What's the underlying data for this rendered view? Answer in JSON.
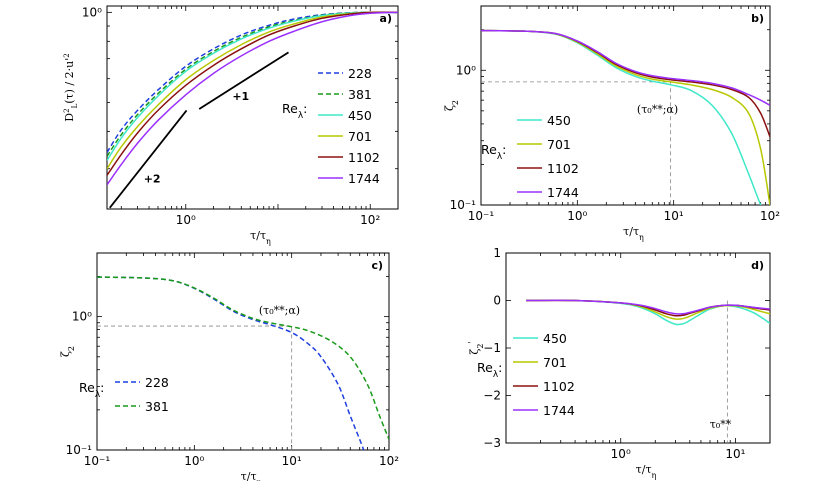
{
  "chart_data": [
    {
      "id": "a",
      "type": "line",
      "panel_label": "a)",
      "xscale": "log",
      "yscale": "log",
      "xlim": [
        0.14,
        200
      ],
      "ylim": [
        0.22,
        1.05
      ],
      "xlabel_html": "τ/τ<tspan baseline-shift='sub' font-size='8'>η</tspan>",
      "ylabel": "D_L^2(τ) / 2·u'^2",
      "yticks": [
        {
          "v": 1,
          "t": "10⁰"
        }
      ],
      "xticks": [
        {
          "v": 1,
          "t": "10⁰"
        },
        {
          "v": 100,
          "t": "10²"
        }
      ],
      "legend": {
        "title": "Re",
        "title_sub": "λ",
        "position": "right"
      },
      "series": [
        {
          "name": "228",
          "color": "#1f3fe0",
          "dash": "5 3",
          "x": [
            0.14,
            0.2,
            0.3,
            0.5,
            1,
            2,
            4,
            8,
            15,
            30,
            60,
            100,
            200
          ],
          "y": [
            0.34,
            0.405,
            0.47,
            0.55,
            0.66,
            0.755,
            0.84,
            0.905,
            0.95,
            0.982,
            0.997,
            1.0,
            1.0
          ]
        },
        {
          "name": "381",
          "color": "#1a9a1a",
          "dash": "5 3",
          "x": [
            0.14,
            0.2,
            0.3,
            0.5,
            1,
            2,
            4,
            8,
            15,
            30,
            60,
            100,
            200
          ],
          "y": [
            0.33,
            0.39,
            0.455,
            0.535,
            0.645,
            0.74,
            0.825,
            0.895,
            0.94,
            0.978,
            0.996,
            1.0,
            1.0
          ]
        },
        {
          "name": "450",
          "color": "#3fe8c8",
          "dash": "",
          "x": [
            0.14,
            0.2,
            0.3,
            0.5,
            1,
            2,
            4,
            8,
            15,
            30,
            60,
            100,
            200
          ],
          "y": [
            0.32,
            0.38,
            0.445,
            0.525,
            0.635,
            0.73,
            0.815,
            0.885,
            0.935,
            0.975,
            0.995,
            1.0,
            1.0
          ]
        },
        {
          "name": "701",
          "color": "#b8c800",
          "dash": "",
          "x": [
            0.14,
            0.2,
            0.3,
            0.5,
            1,
            2,
            4,
            8,
            15,
            30,
            60,
            100,
            200
          ],
          "y": [
            0.3,
            0.355,
            0.415,
            0.49,
            0.595,
            0.69,
            0.78,
            0.86,
            0.915,
            0.965,
            0.99,
            1.0,
            1.0
          ]
        },
        {
          "name": "1102",
          "color": "#8b1010",
          "dash": "",
          "x": [
            0.14,
            0.2,
            0.3,
            0.5,
            1,
            2,
            4,
            8,
            15,
            30,
            60,
            100,
            200
          ],
          "y": [
            0.285,
            0.335,
            0.395,
            0.47,
            0.57,
            0.665,
            0.755,
            0.84,
            0.9,
            0.955,
            0.987,
            1.0,
            1.0
          ]
        },
        {
          "name": "1744",
          "color": "#9b30ff",
          "dash": "",
          "x": [
            0.14,
            0.2,
            0.3,
            0.5,
            1,
            2,
            4,
            8,
            15,
            30,
            60,
            100,
            200
          ],
          "y": [
            0.265,
            0.31,
            0.365,
            0.435,
            0.53,
            0.625,
            0.715,
            0.8,
            0.865,
            0.93,
            0.975,
            0.993,
            1.0
          ]
        }
      ],
      "slope_lines": [
        {
          "label": "+2",
          "x": [
            0.15,
            1.02
          ],
          "y": [
            0.222,
            0.47
          ],
          "label_x": 0.35,
          "label_y": 0.27
        },
        {
          "label": "+1",
          "x": [
            1.4,
            13
          ],
          "y": [
            0.475,
            0.735
          ],
          "label_x": 3.2,
          "label_y": 0.51
        }
      ]
    },
    {
      "id": "b",
      "type": "line",
      "panel_label": "b)",
      "xscale": "log",
      "yscale": "log",
      "xlim": [
        0.1,
        100
      ],
      "ylim": [
        0.1,
        3.0
      ],
      "xlabel_html": "τ/τ<tspan baseline-shift='sub' font-size='8'>η</tspan>",
      "ylabel_html": "ζ<tspan baseline-shift='sub' font-size='8'>2</tspan>",
      "xticks": [
        {
          "v": 0.1,
          "t": "10⁻¹"
        },
        {
          "v": 1,
          "t": "10⁰"
        },
        {
          "v": 10,
          "t": "10¹"
        },
        {
          "v": 100,
          "t": "10²"
        }
      ],
      "yticks": [
        {
          "v": 0.1,
          "t": "10⁻¹"
        },
        {
          "v": 1,
          "t": "10⁰"
        }
      ],
      "legend": {
        "title": "Re",
        "title_sub": "λ",
        "position": "bottom-left"
      },
      "annotation": {
        "text": "(τ₀**;α)",
        "x": 6.8,
        "y": 0.48
      },
      "reference": {
        "x": 9.3,
        "y": 0.82
      },
      "series": [
        {
          "name": "450",
          "color": "#3fe8c8",
          "dash": "",
          "x": [
            0.1,
            0.3,
            0.6,
            1,
            1.6,
            2.5,
            4,
            6,
            9.3,
            15,
            25,
            40,
            60,
            80,
            100
          ],
          "y": [
            1.97,
            1.95,
            1.85,
            1.6,
            1.3,
            1.05,
            0.9,
            0.83,
            0.78,
            0.71,
            0.55,
            0.34,
            0.17,
            0.1,
            0.07
          ]
        },
        {
          "name": "701",
          "color": "#b8c800",
          "dash": "",
          "x": [
            0.1,
            0.3,
            0.6,
            1,
            1.6,
            2.5,
            4,
            6,
            9.3,
            15,
            25,
            40,
            60,
            80,
            100
          ],
          "y": [
            1.97,
            1.95,
            1.86,
            1.62,
            1.33,
            1.08,
            0.93,
            0.86,
            0.82,
            0.78,
            0.72,
            0.63,
            0.48,
            0.26,
            0.1
          ]
        },
        {
          "name": "1102",
          "color": "#8b1010",
          "dash": "",
          "x": [
            0.1,
            0.3,
            0.6,
            1,
            1.6,
            2.5,
            4,
            6,
            9.3,
            15,
            25,
            40,
            60,
            80,
            100
          ],
          "y": [
            1.97,
            1.95,
            1.87,
            1.64,
            1.36,
            1.11,
            0.96,
            0.89,
            0.85,
            0.82,
            0.78,
            0.72,
            0.63,
            0.48,
            0.32
          ]
        },
        {
          "name": "1744",
          "color": "#9b30ff",
          "dash": "",
          "x": [
            0.1,
            0.3,
            0.6,
            1,
            1.6,
            2.5,
            4,
            6,
            9.3,
            15,
            25,
            40,
            60,
            80,
            100
          ],
          "y": [
            1.97,
            1.95,
            1.87,
            1.65,
            1.38,
            1.13,
            0.98,
            0.91,
            0.87,
            0.84,
            0.8,
            0.74,
            0.66,
            0.6,
            0.55
          ]
        }
      ]
    },
    {
      "id": "c",
      "type": "line",
      "panel_label": "c)",
      "xscale": "log",
      "yscale": "log",
      "xlim": [
        0.1,
        100
      ],
      "ylim": [
        0.1,
        3.0
      ],
      "xlabel_html": "τ/τ<tspan baseline-shift='sub' font-size='8'>η</tspan>",
      "ylabel_html": "ζ<tspan baseline-shift='sub' font-size='8'>2</tspan>",
      "xticks": [
        {
          "v": 0.1,
          "t": "10⁻¹"
        },
        {
          "v": 1,
          "t": "10⁰"
        },
        {
          "v": 10,
          "t": "10¹"
        },
        {
          "v": 100,
          "t": "10²"
        }
      ],
      "yticks": [
        {
          "v": 0.1,
          "t": "10⁻¹"
        },
        {
          "v": 1,
          "t": "10⁰"
        }
      ],
      "legend": {
        "title": "Re",
        "title_sub": "λ",
        "position": "bottom-left"
      },
      "annotation": {
        "text": "(τ₀**;α)",
        "x": 7.5,
        "y": 1.05
      },
      "reference": {
        "x": 10,
        "y": 0.85
      },
      "series": [
        {
          "name": "228",
          "color": "#1f3fe0",
          "dash": "5 3",
          "x": [
            0.1,
            0.3,
            0.6,
            1,
            1.6,
            2.5,
            4,
            6,
            10,
            15,
            20,
            30,
            40,
            50,
            55
          ],
          "y": [
            1.98,
            1.95,
            1.86,
            1.63,
            1.35,
            1.1,
            0.95,
            0.87,
            0.76,
            0.62,
            0.5,
            0.31,
            0.18,
            0.12,
            0.1
          ]
        },
        {
          "name": "381",
          "color": "#1a9a1a",
          "dash": "5 3",
          "x": [
            0.1,
            0.3,
            0.6,
            1,
            1.6,
            2.5,
            4,
            6,
            10,
            15,
            25,
            40,
            60,
            80,
            100
          ],
          "y": [
            1.98,
            1.95,
            1.86,
            1.64,
            1.37,
            1.12,
            0.97,
            0.9,
            0.84,
            0.78,
            0.66,
            0.5,
            0.31,
            0.18,
            0.12
          ]
        }
      ]
    },
    {
      "id": "d",
      "type": "line",
      "panel_label": "d)",
      "xscale": "log",
      "yscale": "linear",
      "xlim": [
        0.1,
        20
      ],
      "ylim": [
        -3,
        1
      ],
      "xlabel_html": "τ/τ<tspan baseline-shift='sub' font-size='8'>η</tspan>",
      "ylabel_html": "ζ<tspan baseline-shift='sub' font-size='8'>2</tspan><tspan baseline-shift='super' font-size='8'>'</tspan>",
      "xticks": [
        {
          "v": 1,
          "t": "10⁰"
        },
        {
          "v": 10,
          "t": "10¹"
        }
      ],
      "yticks": [
        {
          "v": 1,
          "t": "1"
        },
        {
          "v": 0,
          "t": "0"
        },
        {
          "v": -1,
          "t": "−1"
        },
        {
          "v": -2,
          "t": "−2"
        },
        {
          "v": -3,
          "t": "−3"
        }
      ],
      "legend": {
        "title": "Re",
        "title_sub": "λ",
        "position": "left"
      },
      "annotation": {
        "text": "τ₀**",
        "x": 7.4,
        "y": -2.68
      },
      "reference": {
        "x": 8.5,
        "y": null
      },
      "series": [
        {
          "name": "450",
          "color": "#3fe8c8",
          "dash": "",
          "x": [
            0.15,
            0.4,
            1,
            1.5,
            2,
            2.5,
            3,
            3.5,
            4,
            5,
            6,
            8,
            10,
            12,
            15,
            20
          ],
          "y": [
            0.0,
            0.0,
            -0.06,
            -0.15,
            -0.28,
            -0.42,
            -0.5,
            -0.49,
            -0.42,
            -0.28,
            -0.18,
            -0.11,
            -0.13,
            -0.18,
            -0.28,
            -0.48
          ]
        },
        {
          "name": "701",
          "color": "#b8c800",
          "dash": "",
          "x": [
            0.15,
            0.4,
            1,
            1.5,
            2,
            2.5,
            3,
            3.5,
            4,
            5,
            6,
            8,
            10,
            12,
            15,
            20
          ],
          "y": [
            0.0,
            0.0,
            -0.05,
            -0.13,
            -0.24,
            -0.34,
            -0.39,
            -0.38,
            -0.33,
            -0.23,
            -0.16,
            -0.11,
            -0.11,
            -0.14,
            -0.2,
            -0.28
          ]
        },
        {
          "name": "1102",
          "color": "#8b1010",
          "dash": "",
          "x": [
            0.15,
            0.4,
            1,
            1.5,
            2,
            2.5,
            3,
            3.5,
            4,
            5,
            6,
            8,
            10,
            12,
            15,
            20
          ],
          "y": [
            0.0,
            0.0,
            -0.05,
            -0.11,
            -0.2,
            -0.28,
            -0.32,
            -0.31,
            -0.27,
            -0.2,
            -0.14,
            -0.1,
            -0.1,
            -0.12,
            -0.16,
            -0.2
          ]
        },
        {
          "name": "1744",
          "color": "#9b30ff",
          "dash": "",
          "x": [
            0.15,
            0.4,
            1,
            1.5,
            2,
            2.5,
            3,
            3.5,
            4,
            5,
            6,
            8,
            10,
            12,
            15,
            20
          ],
          "y": [
            0.0,
            0.0,
            -0.05,
            -0.1,
            -0.17,
            -0.24,
            -0.28,
            -0.28,
            -0.25,
            -0.19,
            -0.14,
            -0.1,
            -0.1,
            -0.12,
            -0.15,
            -0.18
          ]
        }
      ]
    }
  ]
}
